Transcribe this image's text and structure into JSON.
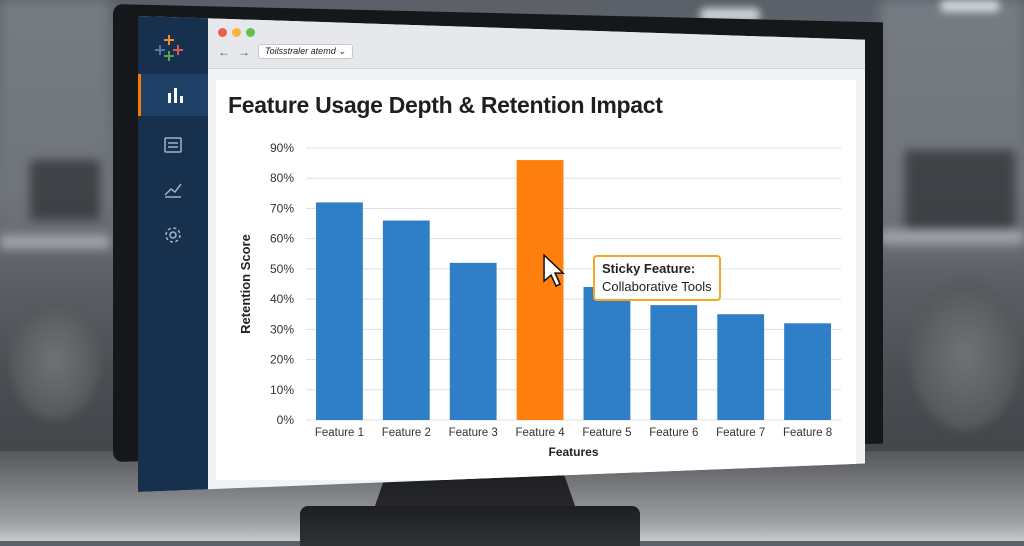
{
  "app": {
    "address_text": "Toilsstraler atemd",
    "address_chevron": "⌄"
  },
  "nav": {
    "items": [
      {
        "name": "dashboard",
        "active": true
      },
      {
        "name": "reports",
        "active": false
      },
      {
        "name": "analytics",
        "active": false
      },
      {
        "name": "settings",
        "active": false
      }
    ]
  },
  "colors": {
    "bar": "#2f7fc8",
    "highlight": "#ff7f0e",
    "sidebar": "#17304d"
  },
  "chart_data": {
    "type": "bar",
    "title": "Feature Usage Depth & Retention Impact",
    "xlabel": "Features",
    "ylabel": "Retention Score",
    "ylim": [
      0,
      90
    ],
    "yticks": [
      "0%",
      "10%",
      "20%",
      "30%",
      "40%",
      "50%",
      "60%",
      "70%",
      "80%",
      "90%"
    ],
    "categories": [
      "Feature 1",
      "Feature 2",
      "Feature 3",
      "Feature 4",
      "Feature 5",
      "Feature 6",
      "Feature 7",
      "Feature 8"
    ],
    "values": [
      72,
      66,
      52,
      86,
      44,
      38,
      35,
      32
    ],
    "highlight_index": 3,
    "annotation": {
      "line1": "Sticky Feature:",
      "line2": "Collaborative Tools"
    }
  }
}
